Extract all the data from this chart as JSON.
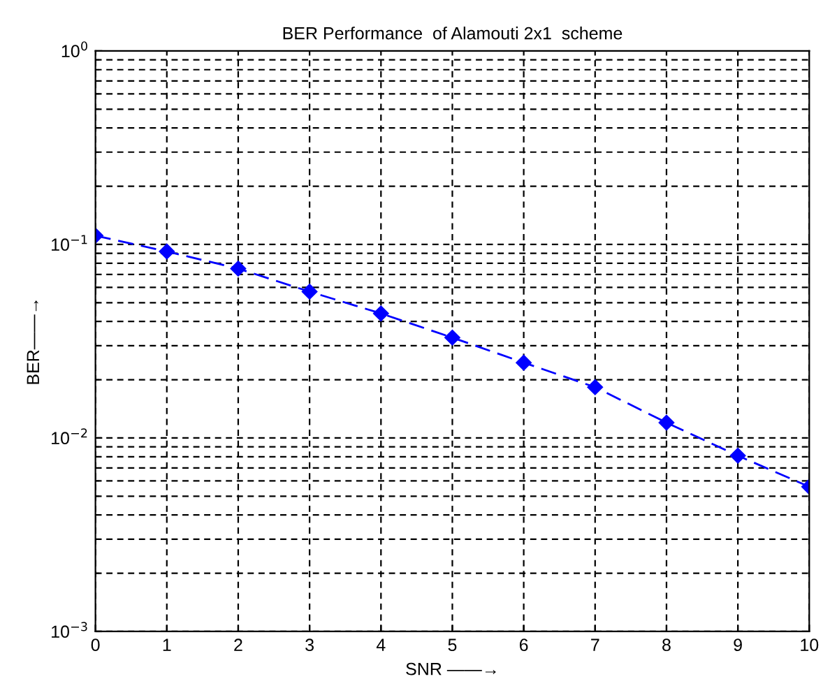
{
  "chart_data": {
    "type": "line",
    "title": "BER Performance  of Alamouti 2x1  scheme",
    "xlabel": "SNR ——→",
    "ylabel": "BER——→",
    "x": [
      0,
      1,
      2,
      3,
      4,
      5,
      6,
      7,
      8,
      9,
      10
    ],
    "series": [
      {
        "color": "#0000ff",
        "values": [
          0.111,
          0.092,
          0.075,
          0.057,
          0.044,
          0.033,
          0.0245,
          0.0183,
          0.012,
          0.0081,
          0.0056
        ]
      }
    ],
    "log": "y",
    "xlim": [
      0,
      10
    ],
    "xticks": [
      0,
      1,
      2,
      3,
      4,
      5,
      6,
      7,
      8,
      9,
      10
    ],
    "ylim": [
      0.001,
      1
    ],
    "yticks": [
      {
        "value": 0.001,
        "label": "10$^{−3}$"
      },
      {
        "value": 0.01,
        "label": "10$^{−2}$"
      },
      {
        "value": 0.1,
        "label": "10$^{−1}$"
      },
      {
        "value": 1,
        "label": "10$^{0}$"
      }
    ],
    "grid": true,
    "marker": "diamond",
    "line_style": "dashed"
  }
}
